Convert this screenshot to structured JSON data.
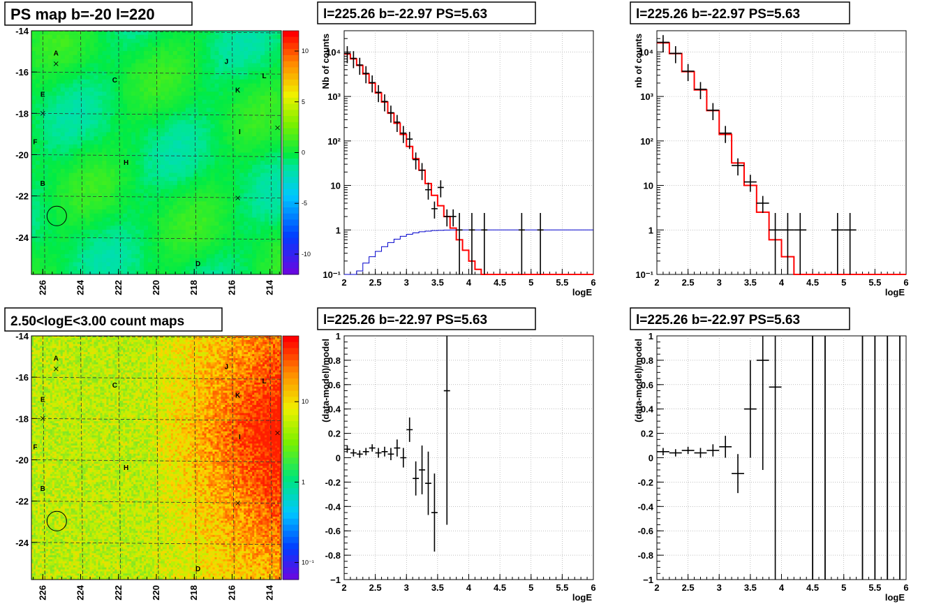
{
  "panels": {
    "ps_map": {
      "title": "PS map b=-20 l=220",
      "x_ticks": [
        "226",
        "224",
        "222",
        "220",
        "218",
        "216",
        "214"
      ],
      "y_ticks": [
        "-14",
        "-16",
        "-18",
        "-20",
        "-22",
        "-24"
      ],
      "colorbar_ticks": [
        "10",
        "5",
        "0",
        "-5",
        "-10"
      ],
      "source_labels": [
        "A",
        "B",
        "C",
        "D",
        "E",
        "F",
        "H",
        "I",
        "J",
        "K",
        "L"
      ]
    },
    "count_map": {
      "title": "2.50<logE<3.00 count maps",
      "x_ticks": [
        "226",
        "224",
        "222",
        "220",
        "218",
        "216",
        "214"
      ],
      "y_ticks": [
        "-14",
        "-16",
        "-18",
        "-20",
        "-22",
        "-24"
      ],
      "colorbar_ticks": [
        "10",
        "1",
        "10⁻¹"
      ],
      "source_labels": [
        "A",
        "B",
        "C",
        "D",
        "E",
        "F",
        "H",
        "I",
        "J",
        "K",
        "L"
      ]
    },
    "spec1": {
      "title": "l=225.26 b=-22.97 PS=5.63",
      "ylabel": "Nb of counts",
      "xlabel": "logE"
    },
    "spec2": {
      "title": "l=225.26 b=-22.97 PS=5.63",
      "ylabel": "nb of counts",
      "xlabel": "logE"
    },
    "res1": {
      "title": "l=225.26 b=-22.97 PS=5.63",
      "ylabel": "(data-model)/model",
      "xlabel": "logE"
    },
    "res2": {
      "title": "l=225.26 b=-22.97 PS=5.63",
      "ylabel": "(data-model)/model",
      "xlabel": "logE"
    }
  },
  "chart_data": [
    {
      "type": "heatmap",
      "title": "PS map b=-20 l=220",
      "x_range": [
        226.6,
        213.4
      ],
      "y_range": [
        -25.8,
        -14
      ],
      "z_range": [
        -12,
        12
      ],
      "colorbar_ticks": [
        10,
        5,
        0,
        -5,
        -10
      ],
      "sources": [
        {
          "name": "A",
          "l": 225.3,
          "b": -15.2
        },
        {
          "name": "B",
          "l": 226.0,
          "b": -21.5
        },
        {
          "name": "C",
          "l": 222.2,
          "b": -16.5
        },
        {
          "name": "D",
          "l": 217.8,
          "b": -25.4
        },
        {
          "name": "E",
          "l": 226.0,
          "b": -17.2
        },
        {
          "name": "F",
          "l": 226.4,
          "b": -19.5
        },
        {
          "name": "H",
          "l": 221.6,
          "b": -20.5
        },
        {
          "name": "I",
          "l": 215.6,
          "b": -19.0
        },
        {
          "name": "J",
          "l": 216.3,
          "b": -15.6
        },
        {
          "name": "K",
          "l": 215.7,
          "b": -17.0
        },
        {
          "name": "L",
          "l": 214.3,
          "b": -16.3
        }
      ],
      "marked_crosses": [
        {
          "l": 225.3,
          "b": -15.6
        },
        {
          "l": 226.0,
          "b": -18.0
        },
        {
          "l": 215.7,
          "b": -22.1
        },
        {
          "l": 213.6,
          "b": -18.7
        }
      ],
      "circle": {
        "l": 225.26,
        "b": -22.97
      }
    },
    {
      "type": "heatmap",
      "title": "2.50<logE<3.00 count maps",
      "x_range": [
        226.6,
        213.4
      ],
      "y_range": [
        -25.8,
        -14
      ],
      "z_scale": "log",
      "colorbar_ticks": [
        "10",
        "1",
        "10^-1"
      ],
      "circle": {
        "l": 225.26,
        "b": -22.97
      }
    },
    {
      "type": "line",
      "title": "l=225.26 b=-22.97 PS=5.63",
      "xlabel": "logE",
      "ylabel": "Nb of counts",
      "xlim": [
        2,
        6
      ],
      "ylim": [
        0.1,
        30000
      ],
      "y_scale": "log",
      "grid": true,
      "x_ticks": [
        2,
        2.5,
        3,
        3.5,
        4,
        4.5,
        5,
        5.5,
        6
      ],
      "y_ticks": [
        "10⁻¹",
        "1",
        "10",
        "10²",
        "10³",
        "10⁴"
      ],
      "bin_edges": [
        2.0,
        2.1,
        2.2,
        2.3,
        2.4,
        2.5,
        2.6,
        2.7,
        2.8,
        2.9,
        3.0,
        3.1,
        3.2,
        3.3,
        3.4,
        3.5,
        3.6,
        3.7,
        3.8,
        3.9,
        4.0,
        4.1,
        4.2,
        4.3,
        4.4,
        4.5,
        4.6,
        4.7,
        4.8,
        4.9,
        5.0,
        5.1,
        5.2,
        5.3,
        5.4,
        5.5,
        5.6,
        5.7,
        5.8,
        5.9,
        6.0
      ],
      "series": [
        {
          "kind": "model_step",
          "color": "#ff0000",
          "values": [
            9000,
            7000,
            5000,
            3200,
            2000,
            1200,
            750,
            420,
            250,
            140,
            75,
            40,
            22,
            11,
            6,
            3.5,
            2,
            1.1,
            0.6,
            0.35,
            0.2,
            0.13,
            0.1,
            0.1,
            0.1,
            0.1,
            0.1,
            0.1,
            0.1,
            0.1,
            0.1,
            0.1,
            0.1,
            0.1,
            0.1,
            0.1,
            0.1,
            0.1,
            0.1,
            0.1
          ]
        },
        {
          "kind": "efficiency_step",
          "color": "#0000cc",
          "values": [
            0.05,
            0.08,
            0.12,
            0.18,
            0.25,
            0.33,
            0.42,
            0.52,
            0.62,
            0.72,
            0.8,
            0.86,
            0.91,
            0.94,
            0.97,
            0.98,
            0.99,
            1,
            1,
            1,
            1,
            1,
            1,
            1,
            1,
            1,
            1,
            1,
            1,
            1,
            1,
            1,
            1,
            1,
            1,
            1,
            1,
            1,
            1,
            1
          ]
        },
        {
          "kind": "data_points",
          "color": "#000000",
          "points": [
            {
              "x": 2.05,
              "y": 9300,
              "err": null
            },
            {
              "x": 2.15,
              "y": 7200,
              "err": null
            },
            {
              "x": 2.25,
              "y": 5100,
              "err": null
            },
            {
              "x": 2.35,
              "y": 3300,
              "err": null
            },
            {
              "x": 2.45,
              "y": 2050,
              "err": null
            },
            {
              "x": 2.55,
              "y": 1240,
              "err": null
            },
            {
              "x": 2.65,
              "y": 770,
              "err": null
            },
            {
              "x": 2.75,
              "y": 430,
              "err": null
            },
            {
              "x": 2.85,
              "y": 265,
              "err": null
            },
            {
              "x": 2.95,
              "y": 150,
              "err": null
            },
            {
              "x": 3.05,
              "y": 110,
              "err": null
            },
            {
              "x": 3.15,
              "y": 38,
              "err": null
            },
            {
              "x": 3.25,
              "y": 22,
              "err": null
            },
            {
              "x": 3.35,
              "y": 8,
              "err": null
            },
            {
              "x": 3.45,
              "y": 3,
              "err": null
            },
            {
              "x": 3.55,
              "y": 9,
              "err": null
            },
            {
              "x": 3.65,
              "y": 2,
              "err": null
            },
            {
              "x": 3.75,
              "y": 2,
              "err": null
            },
            {
              "x": 3.85,
              "y": 1,
              "err": null
            },
            {
              "x": 4.05,
              "y": 1,
              "err": null
            },
            {
              "x": 4.25,
              "y": 1,
              "err": null
            },
            {
              "x": 4.85,
              "y": 1,
              "err": null
            },
            {
              "x": 5.15,
              "y": 1,
              "err": null
            }
          ]
        }
      ]
    },
    {
      "type": "line",
      "title": "l=225.26 b=-22.97 PS=5.63",
      "xlabel": "logE",
      "ylabel": "nb of counts",
      "xlim": [
        2,
        6
      ],
      "ylim": [
        0.1,
        30000
      ],
      "y_scale": "log",
      "grid": true,
      "x_ticks": [
        2,
        2.5,
        3,
        3.5,
        4,
        4.5,
        5,
        5.5,
        6
      ],
      "y_ticks": [
        "10⁻¹",
        "1",
        "10",
        "10²",
        "10³",
        "10⁴"
      ],
      "bin_edges": [
        2.0,
        2.2,
        2.4,
        2.6,
        2.8,
        3.0,
        3.2,
        3.4,
        3.6,
        3.8,
        4.0,
        4.2,
        4.4,
        4.6,
        4.8,
        5.0,
        5.2,
        5.4,
        5.6,
        5.8,
        6.0
      ],
      "series": [
        {
          "kind": "model_step",
          "color": "#ff0000",
          "values": [
            16000,
            9200,
            3600,
            1400,
            480,
            140,
            32,
            10,
            2.5,
            0.6,
            0.25,
            0.1,
            0.1,
            0.1,
            0.1,
            0.1,
            0.1,
            0.1,
            0.1,
            0.1
          ]
        },
        {
          "kind": "data_points",
          "color": "#000000",
          "points": [
            {
              "x": 2.1,
              "y": 16500,
              "err": null
            },
            {
              "x": 2.3,
              "y": 9300,
              "err": null
            },
            {
              "x": 2.5,
              "y": 3700,
              "err": null
            },
            {
              "x": 2.7,
              "y": 1450,
              "err": null
            },
            {
              "x": 2.9,
              "y": 490,
              "err": null
            },
            {
              "x": 3.1,
              "y": 150,
              "err": null
            },
            {
              "x": 3.3,
              "y": 28,
              "err": null
            },
            {
              "x": 3.5,
              "y": 12,
              "err": null
            },
            {
              "x": 3.7,
              "y": 4,
              "err": null
            },
            {
              "x": 3.9,
              "y": 1,
              "err": null
            },
            {
              "x": 4.1,
              "y": 1,
              "err": null
            },
            {
              "x": 4.3,
              "y": 1,
              "err": null
            },
            {
              "x": 4.9,
              "y": 1,
              "err": null
            },
            {
              "x": 5.1,
              "y": 1,
              "err": null
            }
          ]
        }
      ]
    },
    {
      "type": "scatter",
      "title": "l=225.26 b=-22.97 PS=5.63",
      "xlabel": "logE",
      "ylabel": "(data-model)/model",
      "xlim": [
        2,
        6
      ],
      "ylim": [
        -1,
        1
      ],
      "grid": true,
      "x_ticks": [
        2,
        2.5,
        3,
        3.5,
        4,
        4.5,
        5,
        5.5,
        6
      ],
      "y_ticks": [
        -1,
        -0.8,
        -0.6,
        -0.4,
        -0.2,
        0,
        0.2,
        0.4,
        0.6,
        0.8,
        1
      ],
      "points": [
        {
          "x": 2.05,
          "y": 0.07,
          "err": 0.03
        },
        {
          "x": 2.15,
          "y": 0.04,
          "err": 0.03
        },
        {
          "x": 2.25,
          "y": 0.03,
          "err": 0.03
        },
        {
          "x": 2.35,
          "y": 0.05,
          "err": 0.03
        },
        {
          "x": 2.45,
          "y": 0.08,
          "err": 0.03
        },
        {
          "x": 2.55,
          "y": 0.04,
          "err": 0.04
        },
        {
          "x": 2.65,
          "y": 0.05,
          "err": 0.04
        },
        {
          "x": 2.75,
          "y": 0.03,
          "err": 0.05
        },
        {
          "x": 2.85,
          "y": 0.08,
          "err": 0.07
        },
        {
          "x": 2.95,
          "y": 0.0,
          "err": 0.08
        },
        {
          "x": 3.05,
          "y": 0.23,
          "err": 0.1
        },
        {
          "x": 3.15,
          "y": -0.17,
          "err": 0.14
        },
        {
          "x": 3.25,
          "y": -0.1,
          "err": 0.2
        },
        {
          "x": 3.35,
          "y": -0.21,
          "err": 0.26
        },
        {
          "x": 3.45,
          "y": -0.45,
          "err": 0.32
        },
        {
          "x": 3.65,
          "y": 0.55,
          "err": 1.1
        }
      ]
    },
    {
      "type": "scatter",
      "title": "l=225.26 b=-22.97 PS=5.63",
      "xlabel": "logE",
      "ylabel": "(data-model)/model",
      "xlim": [
        2,
        6
      ],
      "ylim": [
        -1,
        1
      ],
      "grid": true,
      "x_ticks": [
        2,
        2.5,
        3,
        3.5,
        4,
        4.5,
        5,
        5.5,
        6
      ],
      "y_ticks": [
        -1,
        -0.8,
        -0.6,
        -0.4,
        -0.2,
        0,
        0.2,
        0.4,
        0.6,
        0.8,
        1
      ],
      "points": [
        {
          "x": 2.1,
          "y": 0.05,
          "err": 0.03
        },
        {
          "x": 2.3,
          "y": 0.04,
          "err": 0.03
        },
        {
          "x": 2.5,
          "y": 0.06,
          "err": 0.03
        },
        {
          "x": 2.7,
          "y": 0.04,
          "err": 0.04
        },
        {
          "x": 2.9,
          "y": 0.06,
          "err": 0.05
        },
        {
          "x": 3.1,
          "y": 0.09,
          "err": 0.09
        },
        {
          "x": 3.3,
          "y": -0.13,
          "err": 0.16
        },
        {
          "x": 3.5,
          "y": 0.4,
          "err": 0.4
        },
        {
          "x": 3.7,
          "y": 0.8,
          "err": 0.9
        },
        {
          "x": 3.9,
          "y": 0.58,
          "err": 1.6
        }
      ],
      "vertical_bars_x": [
        4.5,
        4.7,
        5.3,
        5.5,
        5.7,
        5.9
      ]
    }
  ]
}
